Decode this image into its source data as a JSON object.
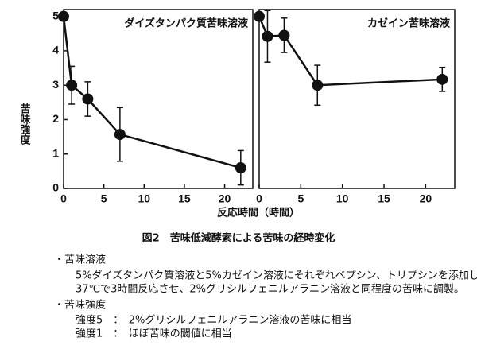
{
  "chart_data": [
    {
      "type": "line",
      "title": "ダイズタンパク質苦味溶液",
      "y_label": "苦味強度",
      "x_label": "反応時間（時間）",
      "x": [
        0,
        1,
        3,
        7,
        22
      ],
      "values": [
        5,
        3.0,
        2.6,
        1.57,
        0.6
      ],
      "errors": [
        null,
        0.55,
        0.5,
        0.78,
        0.5
      ],
      "xlim": [
        0,
        23.5
      ],
      "ylim": [
        0,
        5.2
      ],
      "xticks": [
        0,
        5,
        10,
        15,
        20
      ],
      "yticks": [
        0,
        1,
        2,
        3,
        4,
        5
      ],
      "color": "#111111"
    },
    {
      "type": "line",
      "title": "カゼイン苦味溶液",
      "x": [
        0,
        1,
        3,
        7,
        22
      ],
      "values": [
        5,
        4.42,
        4.45,
        3.0,
        3.17
      ],
      "errors": [
        null,
        0.75,
        0.5,
        0.58,
        0.35
      ],
      "xlim": [
        0,
        23.5
      ],
      "ylim": [
        0,
        5.2
      ],
      "xticks": [
        0,
        5,
        10,
        15,
        20
      ],
      "color": "#111111"
    }
  ],
  "caption": "図2　苦味低減酵素による苦味の経時変化",
  "notes": {
    "bitter_solution": {
      "heading": "・苦味溶液",
      "lines": [
        "5%ダイズタンパク質溶液と5%カゼイン溶液にそれぞれペプシン、トリプシンを添加し、",
        "37℃で3時間反応させ、2%グリシルフェニルアラニン溶液と同程度の苦味に調製。"
      ]
    },
    "bitter_intensity": {
      "heading": "・苦味強度",
      "lines": [
        "強度5　：　2%グリシルフェニルアラニン溶液の苦味に相当",
        "強度1　：　ほぼ苦味の閾値に相当"
      ]
    }
  }
}
